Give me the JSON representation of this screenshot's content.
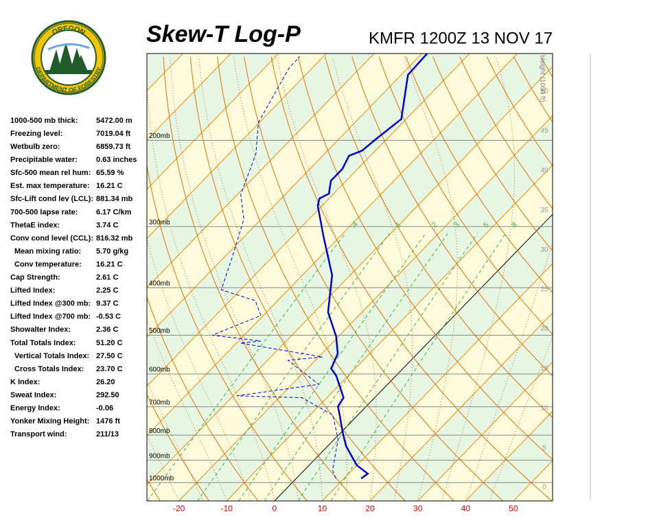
{
  "logo": {
    "top": "OREGON",
    "bottom": "DEPARTMENT OF FORESTRY"
  },
  "indices": [
    {
      "label": "1000-500 mb thick:",
      "value": "5472.00 m"
    },
    {
      "label": "Freezing level:",
      "value": "7019.04 ft"
    },
    {
      "label": "Wetbulb zero:",
      "value": "6859.73 ft"
    },
    {
      "label": "Precipitable water:",
      "value": "0.63 inches"
    },
    {
      "label": "Sfc-500 mean rel hum:",
      "value": "65.59 %"
    },
    {
      "label": "Est. max temperature:",
      "value": "16.21 C"
    },
    {
      "label": "Sfc-Lift cond lev (LCL):",
      "value": "881.34 mb"
    },
    {
      "label": "700-500 lapse rate:",
      "value": "6.17 C/km"
    },
    {
      "label": "ThetaE index:",
      "value": "3.74 C"
    },
    {
      "label": "Conv cond level (CCL):",
      "value": "816.32 mb"
    },
    {
      "label": "Mean mixing ratio:",
      "value": "5.70 g/kg"
    },
    {
      "label": "Conv temperature:",
      "value": "16.21 C"
    },
    {
      "label": "Cap Strength:",
      "value": "2.61 C"
    },
    {
      "label": "Lifted Index:",
      "value": "2.25 C"
    },
    {
      "label": "Lifted Index @300 mb:",
      "value": "9.37 C"
    },
    {
      "label": "Lifted Index @700 mb:",
      "value": "-0.53 C"
    },
    {
      "label": "Showalter Index:",
      "value": "2.36 C"
    },
    {
      "label": "Total Totals Index:",
      "value": "51.20 C"
    },
    {
      "label": "Vertical Totals Index:",
      "value": "27.50 C"
    },
    {
      "label": "Cross Totals Index:",
      "value": "23.70 C"
    },
    {
      "label": "K Index:",
      "value": "26.20"
    },
    {
      "label": "Sweat Index:",
      "value": "292.50"
    },
    {
      "label": "Energy Index:",
      "value": "-0.06"
    },
    {
      "label": "Yonker Mixing Height:",
      "value": "1476 ft"
    },
    {
      "label": "Transport wind:",
      "value": "211/13"
    }
  ],
  "chart_data": {
    "type": "skew-t",
    "title": "Skew-T Log-P",
    "subtitle": "KMFR 1200Z 13 NOV 17",
    "xlim": [
      -26.7,
      58.2
    ],
    "xticks": [
      -20,
      -10,
      0,
      10,
      20,
      30,
      40,
      50
    ],
    "ylim": [
      1090,
      133
    ],
    "log_y": true,
    "yticks": [
      {
        "value": 200,
        "label": "200mb"
      },
      {
        "value": 300,
        "label": "300mb"
      },
      {
        "value": 400,
        "label": "400mb"
      },
      {
        "value": 500,
        "label": "500mb"
      },
      {
        "value": 600,
        "label": "600mb"
      },
      {
        "value": 700,
        "label": "700mb"
      },
      {
        "value": 800,
        "label": "800mb"
      },
      {
        "value": 900,
        "label": "900mb"
      },
      {
        "value": 1000,
        "label": "1000mb"
      }
    ],
    "height_label": "Height (1000 ft)",
    "height_lim": [
      -1.7,
      54.8
    ],
    "height_ticks": [
      0,
      5,
      10,
      15,
      20,
      25,
      30,
      35,
      40,
      45,
      50
    ],
    "mixing_ratio_lines": [
      {
        "value": 0.4,
        "label": ".4"
      },
      1,
      2,
      3,
      5,
      8
    ],
    "series": [
      {
        "color": "#0000cc",
        "style": "solid",
        "pressure": [
          981,
          959,
          922,
          843,
          795,
          728,
          699,
          671,
          606,
          585,
          545,
          503,
          449,
          377,
          314,
          272,
          263,
          257,
          242,
          229,
          215,
          210,
          200,
          181,
          147,
          133
        ],
        "values": [
          13.6,
          14.0,
          10.0,
          3.9,
          0.7,
          -3.8,
          -5.9,
          -6.5,
          -12.4,
          -15.0,
          -16.7,
          -20.5,
          -27.1,
          -33.8,
          -43.5,
          -50.9,
          -52.0,
          -51.0,
          -53.2,
          -53.2,
          -54.5,
          -52.8,
          -52.3,
          -51.0,
          -58.6,
          -58.9
        ]
      },
      {
        "color": "#0000cc",
        "style": "dashed",
        "pressure": [
          981,
          943,
          816,
          728,
          671,
          665,
          630,
          563,
          554,
          519,
          514,
          500,
          456,
          425,
          404,
          341,
          290,
          258,
          213,
          184,
          142,
          135
        ],
        "values": [
          8.3,
          5.9,
          0.8,
          -5.2,
          -15.2,
          -29.2,
          -14.4,
          -25.7,
          -19.2,
          -39.2,
          -35.3,
          -46.7,
          -40.5,
          -44.7,
          -54.0,
          -58.8,
          -63.6,
          -69.3,
          -74.4,
          -80.2,
          -84.9,
          -84.9
        ]
      }
    ]
  }
}
